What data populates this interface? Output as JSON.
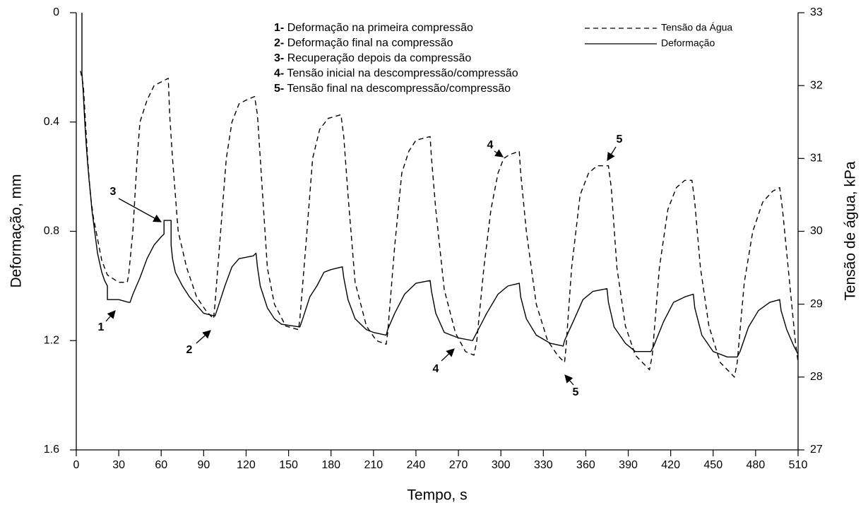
{
  "chart_data": {
    "type": "line",
    "x_label": "Tempo, s",
    "y_label": "Deformação, mm",
    "y2_label": "Tensão de água, kPa",
    "xlim": [
      0,
      510
    ],
    "xticks": [
      0,
      30,
      60,
      90,
      120,
      150,
      180,
      210,
      240,
      270,
      300,
      330,
      360,
      390,
      420,
      450,
      480,
      510
    ],
    "ylim": [
      0,
      1.6
    ],
    "yticks": [
      0,
      0.4,
      0.8,
      1.2,
      1.6
    ],
    "y_inverted": true,
    "y2lim": [
      27,
      33
    ],
    "y2ticks": [
      27,
      28,
      29,
      30,
      31,
      32,
      33
    ],
    "legend": "upper right",
    "series": [
      {
        "name": "Tensão da Água",
        "color": "#000000",
        "line_style": "dashed",
        "axis": "y2",
        "x": [
          3,
          5,
          8,
          10,
          12,
          15,
          18,
          22,
          30,
          36,
          37,
          40,
          43,
          45,
          50,
          55,
          60,
          65,
          66,
          68,
          72,
          78,
          85,
          92,
          97,
          98,
          102,
          106,
          110,
          115,
          120,
          126,
          128,
          130,
          135,
          140,
          148,
          157,
          158,
          163,
          167,
          172,
          178,
          187,
          189,
          192,
          197,
          205,
          212,
          219,
          220,
          225,
          230,
          235,
          240,
          250,
          251,
          254,
          260,
          268,
          275,
          281,
          283,
          288,
          293,
          298,
          302,
          306,
          313,
          314,
          318,
          325,
          333,
          340,
          345,
          346,
          350,
          356,
          362,
          368,
          376,
          378,
          382,
          388,
          395,
          405,
          407,
          412,
          418,
          424,
          430,
          435,
          437,
          441,
          447,
          455,
          465,
          467,
          472,
          478,
          485,
          492,
          497,
          499,
          503,
          508,
          510
        ],
        "values": [
          32.2,
          32.0,
          31.0,
          30.5,
          30.2,
          29.9,
          29.6,
          29.4,
          29.3,
          29.3,
          29.4,
          30.0,
          31.0,
          31.5,
          31.8,
          32.0,
          32.05,
          32.1,
          31.6,
          31.0,
          30.0,
          29.5,
          29.1,
          28.9,
          28.8,
          29.0,
          30.0,
          31.0,
          31.5,
          31.75,
          31.8,
          31.85,
          31.6,
          31.0,
          29.5,
          29.0,
          28.7,
          28.65,
          28.8,
          30.0,
          31.0,
          31.4,
          31.55,
          31.6,
          31.3,
          30.5,
          29.3,
          28.7,
          28.5,
          28.45,
          28.6,
          29.8,
          30.8,
          31.1,
          31.25,
          31.3,
          31.0,
          30.3,
          29.2,
          28.6,
          28.35,
          28.3,
          28.5,
          29.5,
          30.3,
          30.8,
          31.0,
          31.05,
          31.1,
          30.8,
          30.0,
          29.0,
          28.5,
          28.3,
          28.2,
          28.4,
          29.5,
          30.5,
          30.8,
          30.9,
          30.9,
          30.6,
          29.5,
          28.7,
          28.3,
          28.1,
          28.3,
          29.5,
          30.3,
          30.6,
          30.7,
          30.7,
          30.4,
          29.5,
          28.7,
          28.2,
          28.0,
          28.2,
          29.3,
          30.0,
          30.4,
          30.55,
          30.6,
          30.3,
          29.5,
          28.5,
          28.2
        ]
      },
      {
        "name": "Deformação",
        "color": "#000000",
        "line_style": "solid",
        "x": [
          4,
          4,
          5,
          6,
          7,
          8,
          9,
          10,
          11,
          13,
          15,
          18,
          20,
          22,
          22,
          30,
          37,
          38,
          40,
          45,
          50,
          55,
          60,
          62,
          62,
          67,
          67,
          68,
          70,
          75,
          80,
          85,
          90,
          98,
          100,
          105,
          110,
          115,
          125,
          127,
          128,
          130,
          135,
          140,
          145,
          158,
          160,
          165,
          170,
          175,
          180,
          188,
          189,
          192,
          197,
          205,
          210,
          219,
          220,
          225,
          232,
          240,
          250,
          251,
          254,
          260,
          270,
          280,
          282,
          290,
          298,
          305,
          313,
          314,
          318,
          325,
          335,
          344,
          345,
          352,
          358,
          365,
          375,
          376,
          380,
          388,
          395,
          406,
          408,
          415,
          422,
          430,
          436,
          437,
          442,
          450,
          460,
          467,
          469,
          475,
          482,
          490,
          497,
          498,
          502,
          507,
          510
        ],
        "values": [
          0,
          0.22,
          0.3,
          0.4,
          0.48,
          0.55,
          0.61,
          0.66,
          0.72,
          0.8,
          0.88,
          0.95,
          0.98,
          1.0,
          1.05,
          1.05,
          1.06,
          1.06,
          1.03,
          0.97,
          0.9,
          0.85,
          0.82,
          0.81,
          0.76,
          0.76,
          0.85,
          0.9,
          0.95,
          1.0,
          1.04,
          1.07,
          1.1,
          1.11,
          1.08,
          1.0,
          0.93,
          0.9,
          0.89,
          0.88,
          0.93,
          1.0,
          1.08,
          1.12,
          1.14,
          1.15,
          1.12,
          1.04,
          1.0,
          0.95,
          0.94,
          0.93,
          0.97,
          1.05,
          1.12,
          1.16,
          1.17,
          1.18,
          1.16,
          1.1,
          1.03,
          0.99,
          0.98,
          1.02,
          1.1,
          1.17,
          1.19,
          1.2,
          1.18,
          1.1,
          1.03,
          1.0,
          0.99,
          1.04,
          1.12,
          1.18,
          1.21,
          1.22,
          1.2,
          1.12,
          1.05,
          1.02,
          1.01,
          1.06,
          1.15,
          1.21,
          1.24,
          1.24,
          1.22,
          1.13,
          1.06,
          1.04,
          1.03,
          1.08,
          1.18,
          1.24,
          1.26,
          1.26,
          1.24,
          1.15,
          1.09,
          1.06,
          1.05,
          1.09,
          1.16,
          1.22,
          1.25
        ]
      }
    ],
    "notes": [
      {
        "label": "1-",
        "text": "Deformação na primeira compressão"
      },
      {
        "label": "2-",
        "text": "Deformação final na compressão"
      },
      {
        "label": "3-",
        "text": "Recuperação depois da compressão"
      },
      {
        "label": "4-",
        "text": "Tensão inicial na descompressão/compressão"
      },
      {
        "label": "5-",
        "text": "Tensão final na descompressão/compressão"
      }
    ],
    "annotations": [
      "1",
      "2",
      "3",
      "4",
      "4",
      "5",
      "5"
    ]
  }
}
